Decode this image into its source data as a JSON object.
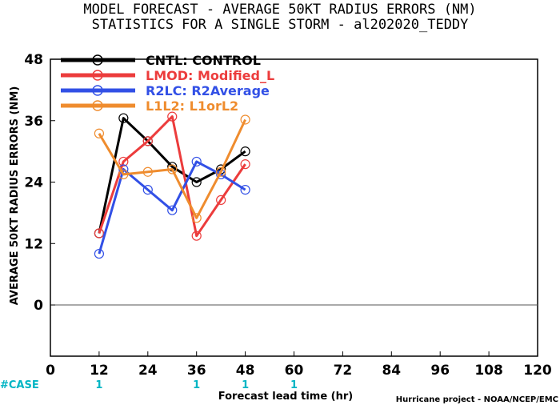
{
  "chart_data": {
    "type": "line",
    "title_lines": [
      "MODEL FORECAST - AVERAGE 50KT RADIUS ERRORS (NM)",
      "STATISTICS FOR A SINGLE STORM - al202020_TEDDY"
    ],
    "xlabel": "Forecast lead time (hr)",
    "ylabel": "AVERAGE 50KT RADIUS ERRORS (NM)",
    "xlim": [
      0,
      120
    ],
    "ylim": [
      -10,
      48
    ],
    "x_ticks": [
      0,
      12,
      24,
      36,
      48,
      60,
      72,
      84,
      96,
      108,
      120
    ],
    "y_ticks": [
      0,
      12,
      24,
      36,
      48
    ],
    "zero_line": true,
    "grid": false,
    "legend_placement": "top-left",
    "series": [
      {
        "code": "CNTL",
        "desc": "CONTROL",
        "legend": "CNTL: CONTROL",
        "color": "#000000",
        "points": [
          [
            12,
            14
          ],
          [
            18,
            36.5
          ],
          [
            24,
            32
          ],
          [
            30,
            27
          ],
          [
            36,
            24
          ],
          [
            42,
            26.5
          ],
          [
            48,
            30
          ]
        ]
      },
      {
        "code": "LMOD",
        "desc": "Modified_L",
        "legend": "LMOD: Modified_L",
        "color": "#ec3c3c",
        "points": [
          [
            12,
            14
          ],
          [
            18,
            28
          ],
          [
            24,
            32
          ],
          [
            30,
            36.8
          ],
          [
            36,
            13.5
          ],
          [
            42,
            20.5
          ],
          [
            48,
            27.5
          ]
        ]
      },
      {
        "code": "R2LC",
        "desc": "R2Average",
        "legend": "R2LC: R2Average",
        "color": "#3250e6",
        "points": [
          [
            12,
            10
          ],
          [
            18,
            26.5
          ],
          [
            24,
            22.5
          ],
          [
            30,
            18.5
          ],
          [
            36,
            28
          ],
          [
            42,
            25.5
          ],
          [
            48,
            22.5
          ]
        ]
      },
      {
        "code": "L1L2",
        "desc": "L1orL2",
        "legend": "L1L2: L1orL2",
        "color": "#ef8c2e",
        "points": [
          [
            12,
            33.5
          ],
          [
            18,
            25.5
          ],
          [
            24,
            26
          ],
          [
            30,
            26.5
          ],
          [
            36,
            17
          ],
          [
            42,
            26
          ],
          [
            48,
            36.2
          ]
        ]
      }
    ],
    "case_counts": {
      "label": "#CASE",
      "entries": [
        {
          "x": 12,
          "count": "1"
        },
        {
          "x": 36,
          "count": "1"
        },
        {
          "x": 48,
          "count": "1"
        },
        {
          "x": 60,
          "count": "1"
        }
      ]
    },
    "credit": "Hurricane project - NOAA/NCEP/EMC"
  }
}
